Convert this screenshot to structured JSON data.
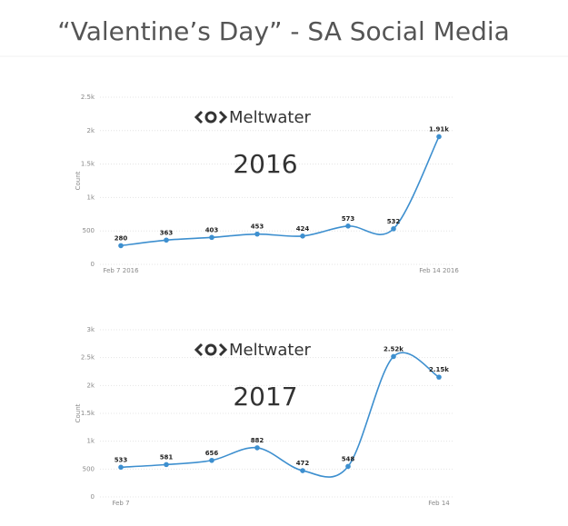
{
  "title": "“Valentine’s Day” - SA Social Media",
  "chart_data": [
    {
      "type": "line",
      "brand": "Meltwater",
      "annotation": "2016",
      "y_label": "Count",
      "categories": [
        "Feb 7 2016",
        null,
        null,
        null,
        null,
        null,
        null,
        "Feb 14 2016"
      ],
      "values": [
        280,
        363,
        403,
        453,
        424,
        573,
        532,
        1910
      ],
      "value_labels": [
        "280",
        "363",
        "403",
        "453",
        "424",
        "573",
        "532",
        "1.91k"
      ],
      "color": "#3d8fcf",
      "ylim": [
        0,
        2500
      ],
      "yticks": [
        0,
        500,
        {
          "value": 1000,
          "label": "1k"
        },
        {
          "value": 1500,
          "label": "1.5k"
        },
        {
          "value": 2000,
          "label": "2k"
        },
        {
          "value": 2500,
          "label": "2.5k"
        }
      ],
      "grid": true
    },
    {
      "type": "line",
      "brand": "Meltwater",
      "annotation": "2017",
      "y_label": "Count",
      "categories": [
        "Feb 7",
        null,
        null,
        null,
        null,
        null,
        null,
        "Feb 14"
      ],
      "values": [
        533,
        581,
        656,
        882,
        472,
        548,
        2520,
        2150
      ],
      "value_labels": [
        "533",
        "581",
        "656",
        "882",
        "472",
        "548",
        "2.52k",
        "2.15k"
      ],
      "color": "#3d8fcf",
      "ylim": [
        0,
        3000
      ],
      "yticks": [
        0,
        500,
        {
          "value": 1000,
          "label": "1k"
        },
        {
          "value": 1500,
          "label": "1.5k"
        },
        {
          "value": 2000,
          "label": "2k"
        },
        {
          "value": 2500,
          "label": "2.5k"
        },
        {
          "value": 3000,
          "label": "3k"
        }
      ],
      "grid": true
    }
  ]
}
